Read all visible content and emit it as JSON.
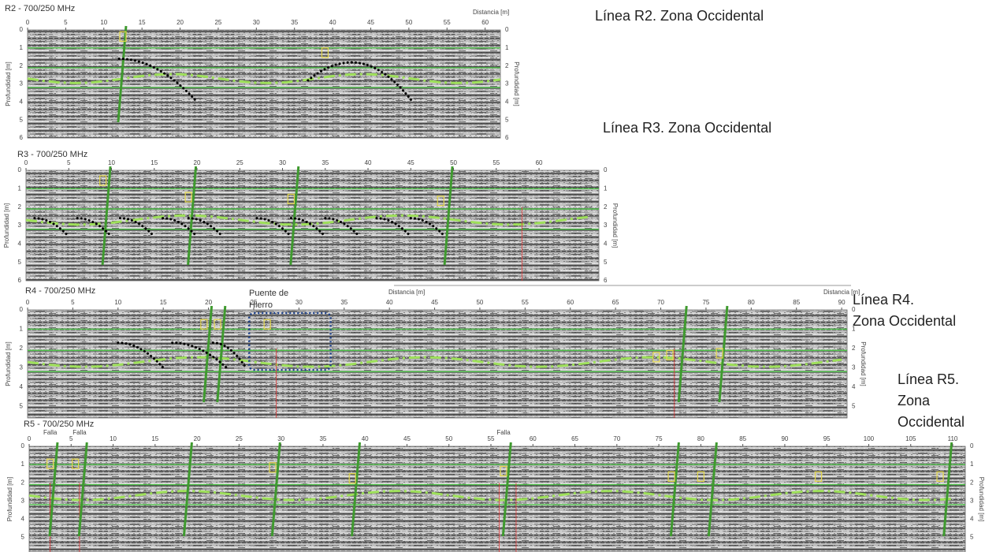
{
  "panels": [
    {
      "title": "R2 - 700/250 MHz",
      "distance_labels": [
        "Distancia [m]"
      ],
      "depth_labels": [
        "Profundidad [m]",
        "Profundidad [m]"
      ],
      "distance_ticks": [
        0,
        5,
        10,
        15,
        20,
        25,
        30,
        35,
        40,
        45,
        50,
        55,
        60
      ],
      "depth_ticks": [
        0,
        1,
        2,
        3,
        4,
        5,
        6
      ]
    },
    {
      "title": "R3 - 700/250 MHz",
      "distance_labels": [],
      "depth_labels": [
        "Profundidad [m]",
        "Profundidad [m]"
      ],
      "distance_ticks": [
        0,
        5,
        10,
        15,
        20,
        25,
        30,
        35,
        40,
        45,
        50,
        55,
        60
      ],
      "depth_ticks": [
        0,
        1,
        2,
        3,
        4,
        5,
        6
      ]
    },
    {
      "title": "R4 - 700/250 MHz",
      "distance_labels": [
        "Distancia [m]",
        "Distancia [m]"
      ],
      "depth_labels": [
        "Profundidad [m]",
        "Profundidad [m]"
      ],
      "distance_ticks": [
        0,
        5,
        10,
        15,
        20,
        25,
        30,
        35,
        40,
        45,
        50,
        55,
        60,
        65,
        70,
        75,
        80,
        85,
        90
      ],
      "depth_ticks": [
        0,
        1,
        2,
        3,
        4,
        5
      ]
    },
    {
      "title": "R5 - 700/250 MHz",
      "distance_labels": [],
      "depth_labels": [
        "Profundidad [m]",
        "Profundidad [m]"
      ],
      "distance_ticks": [
        0,
        5,
        10,
        15,
        20,
        25,
        30,
        35,
        40,
        45,
        50,
        55,
        60,
        65,
        70,
        75,
        80,
        85,
        90,
        95,
        100,
        105,
        110
      ],
      "depth_ticks": [
        0,
        1,
        2,
        3,
        4,
        5
      ]
    }
  ],
  "captions": [
    [
      "Línea R2. Zona Occidental"
    ],
    [
      "Línea R3. Zona Occidental"
    ],
    [
      "Línea R4.",
      "Zona Occidental"
    ],
    [
      "Línea R5.",
      "Zona",
      "Occidental"
    ]
  ],
  "bridge_label": [
    "Puente de",
    "Hierro"
  ],
  "fault_labels": [
    "Falla",
    "Falla",
    "Falla"
  ]
}
